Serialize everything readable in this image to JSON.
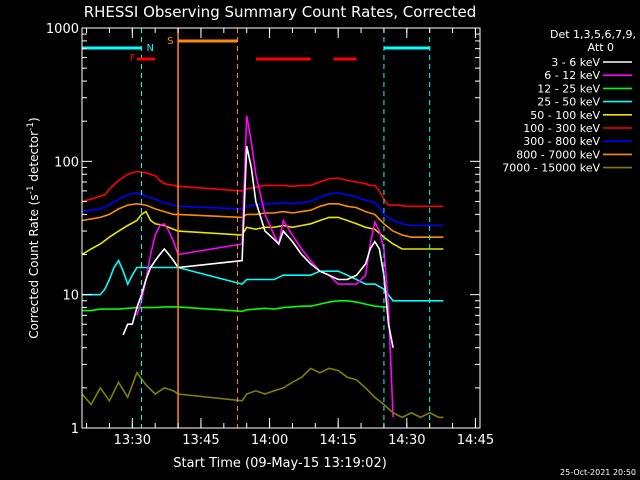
{
  "chart_data": {
    "type": "line",
    "title": "RHESSI Observing Summary Count Rates, Corrected",
    "xlabel": "Start Time (09-May-15 13:19:02)",
    "ylabel": "Corrected Count Rate (s",
    "ylabel_sup1": "-1",
    "ylabel_mid": " detector",
    "ylabel_sup2": "-1",
    "ylabel_end": ")",
    "footer_date": "25-Oct-2021 20:50",
    "yscale": "log",
    "ylim": [
      1,
      1000
    ],
    "xlim_minutes": [
      0,
      87
    ],
    "xtick_labels": [
      "13:30",
      "13:45",
      "14:00",
      "14:15",
      "14:30",
      "14:45"
    ],
    "xtick_minutes": [
      11,
      26,
      41,
      56,
      71,
      86
    ],
    "ytick_labels": [
      "1",
      "10",
      "100",
      "1000"
    ],
    "ytick_values": [
      1,
      10,
      100,
      1000
    ],
    "legend_position": "top-right",
    "legend_header": [
      "Det 1,3,5,6,7,9,",
      "Att 0"
    ],
    "legend": [
      {
        "name": "3 - 6 keV",
        "color": "#ffffff"
      },
      {
        "name": "6 - 12 keV",
        "color": "#ff00ff"
      },
      {
        "name": "12 - 25 keV",
        "color": "#00ff00"
      },
      {
        "name": "25 - 50 keV",
        "color": "#00ffff"
      },
      {
        "name": "50 - 100 keV",
        "color": "#e6e600"
      },
      {
        "name": "100 - 300 keV",
        "color": "#ff0000"
      },
      {
        "name": "300 - 800 keV",
        "color": "#0000ff"
      },
      {
        "name": "800 - 7000 keV",
        "color": "#ff8c00"
      },
      {
        "name": "7000 - 15000 keV",
        "color": "#808000"
      }
    ],
    "flags": {
      "N_label": "N",
      "F_label": "F",
      "S_label": "S",
      "night_cyan_bars": [
        [
          0,
          13
        ],
        [
          66,
          76
        ]
      ],
      "night_dashed_lines": [
        13,
        66,
        76
      ],
      "saa_orange_bar": [
        21,
        34
      ],
      "saa_solid_line": 21,
      "saa_dashed_line": 34,
      "flare_red_bars": [
        [
          12,
          16
        ],
        [
          38,
          50
        ],
        [
          55,
          60
        ]
      ]
    },
    "series": [
      {
        "name": "100 - 300 keV",
        "color": "#ff0000",
        "x": [
          0,
          2,
          4,
          5,
          6,
          8,
          10,
          12,
          14,
          16,
          17,
          18,
          20,
          21,
          35,
          36,
          38,
          40,
          42,
          44,
          46,
          48,
          50,
          52,
          54,
          56,
          58,
          60,
          62,
          63,
          64,
          65,
          66,
          67,
          69,
          71,
          73,
          75,
          77,
          79
        ],
        "y": [
          50,
          52,
          55,
          56,
          62,
          72,
          80,
          84,
          82,
          78,
          72,
          68,
          66,
          65,
          60,
          62,
          64,
          66,
          66,
          66,
          65,
          66,
          66,
          70,
          74,
          75,
          72,
          70,
          68,
          66,
          66,
          60,
          52,
          47,
          47,
          46,
          46,
          46,
          46,
          46
        ]
      },
      {
        "name": "300 - 800 keV",
        "color": "#0000ff",
        "x": [
          0,
          2,
          4,
          6,
          8,
          10,
          12,
          14,
          16,
          18,
          20,
          21,
          35,
          36,
          38,
          40,
          42,
          44,
          46,
          48,
          50,
          52,
          54,
          56,
          58,
          60,
          62,
          64,
          65,
          66,
          68,
          70,
          72,
          74,
          76,
          78,
          79
        ],
        "y": [
          42,
          43,
          44,
          47,
          52,
          56,
          58,
          55,
          52,
          49,
          47,
          46,
          44,
          46,
          47,
          48,
          48,
          49,
          48,
          49,
          50,
          54,
          57,
          58,
          56,
          54,
          51,
          49,
          45,
          40,
          36,
          34,
          33,
          33,
          33,
          33,
          33
        ]
      },
      {
        "name": "800 - 7000 keV",
        "color": "#ff8c00",
        "x": [
          0,
          2,
          4,
          6,
          8,
          10,
          12,
          14,
          16,
          18,
          20,
          21,
          35,
          36,
          38,
          40,
          42,
          44,
          46,
          48,
          50,
          52,
          54,
          56,
          58,
          60,
          62,
          64,
          66,
          68,
          70,
          72,
          74,
          76,
          78,
          79
        ],
        "y": [
          36,
          37,
          38,
          40,
          44,
          47,
          48,
          47,
          44,
          42,
          40,
          40,
          38,
          40,
          40,
          41,
          41,
          42,
          41,
          42,
          43,
          46,
          48,
          48,
          46,
          45,
          42,
          40,
          34,
          30,
          28,
          27,
          27,
          27,
          27,
          27
        ]
      },
      {
        "name": "50 - 100 keV",
        "color": "#e6e600",
        "x": [
          0,
          2,
          4,
          6,
          8,
          10,
          12,
          13,
          14,
          15,
          16,
          18,
          20,
          21,
          35,
          36,
          38,
          40,
          42,
          44,
          46,
          48,
          50,
          52,
          54,
          56,
          58,
          60,
          62,
          64,
          66,
          68,
          70,
          72,
          74,
          76,
          78,
          79
        ],
        "y": [
          20,
          22,
          24,
          27,
          30,
          33,
          36,
          40,
          42,
          36,
          34,
          33,
          31,
          30,
          28,
          32,
          31,
          32,
          32,
          33,
          32,
          33,
          34,
          36,
          38,
          38,
          36,
          34,
          32,
          31,
          27,
          24,
          22,
          22,
          22,
          22,
          22,
          22
        ]
      },
      {
        "name": "25 - 50 keV",
        "color": "#00ffff",
        "x": [
          0,
          2,
          4,
          5,
          6,
          7,
          8,
          9,
          10,
          11,
          12,
          13,
          14,
          16,
          18,
          20,
          21,
          35,
          36,
          38,
          40,
          42,
          44,
          46,
          48,
          50,
          52,
          54,
          56,
          58,
          60,
          62,
          64,
          66,
          68,
          70,
          72,
          74,
          76,
          78,
          79
        ],
        "y": [
          10,
          10,
          10,
          11,
          13,
          16,
          18,
          15,
          12,
          14,
          16,
          16,
          16,
          16,
          16,
          16,
          16,
          12,
          13,
          13,
          13,
          13,
          14,
          14,
          14,
          14,
          15,
          15,
          15,
          14,
          13,
          12,
          12,
          11,
          9,
          9,
          9,
          9,
          9,
          9,
          9
        ]
      },
      {
        "name": "12 - 25 keV",
        "color": "#00ff00",
        "x": [
          0,
          2,
          4,
          6,
          8,
          10,
          12,
          14,
          16,
          18,
          20,
          21,
          35,
          36,
          38,
          40,
          42,
          44,
          46,
          48,
          50,
          52,
          54,
          56,
          58,
          60,
          62,
          64,
          66,
          67
        ],
        "y": [
          7.6,
          7.6,
          7.8,
          7.8,
          7.8,
          7.9,
          8.0,
          8.0,
          8.0,
          8.1,
          8.1,
          8.1,
          7.5,
          7.7,
          7.8,
          7.9,
          7.8,
          8.0,
          8.1,
          8.2,
          8.2,
          8.5,
          8.8,
          9.0,
          9.0,
          8.8,
          8.5,
          8.2,
          8.1,
          8.1
        ]
      },
      {
        "name": "6 - 12 keV",
        "color": "#ff00ff",
        "x": [
          12,
          13,
          14,
          15,
          16,
          17,
          18,
          19,
          20,
          21,
          35,
          36,
          37,
          38,
          40,
          42,
          43,
          44,
          46,
          48,
          50,
          52,
          54,
          56,
          58,
          60,
          62,
          63,
          64,
          65,
          66,
          67,
          68
        ],
        "y": [
          7,
          9,
          13,
          20,
          28,
          33,
          34,
          30,
          25,
          20,
          24,
          220,
          140,
          80,
          40,
          28,
          24,
          36,
          28,
          22,
          18,
          15,
          14,
          12,
          12,
          12,
          14,
          24,
          35,
          30,
          22,
          8,
          1.2
        ]
      },
      {
        "name": "3 - 6 keV",
        "color": "#ffffff",
        "x": [
          9,
          10,
          11,
          12,
          13,
          14,
          15,
          16,
          17,
          18,
          19,
          20,
          21,
          35,
          36,
          37,
          38,
          40,
          42,
          43,
          44,
          46,
          48,
          50,
          52,
          54,
          56,
          58,
          60,
          62,
          63,
          64,
          65,
          66,
          67,
          68
        ],
        "y": [
          5,
          6,
          6,
          8,
          10,
          13,
          16,
          18,
          20,
          22,
          20,
          18,
          16,
          18,
          130,
          90,
          50,
          30,
          26,
          24,
          30,
          25,
          20,
          17,
          15,
          14,
          13,
          13,
          14,
          17,
          22,
          25,
          22,
          14,
          6,
          4
        ]
      },
      {
        "name": "7000 - 15000 keV",
        "color": "#808000",
        "x": [
          0,
          2,
          4,
          6,
          8,
          10,
          12,
          14,
          16,
          18,
          20,
          21,
          35,
          36,
          38,
          40,
          42,
          44,
          46,
          48,
          50,
          52,
          54,
          56,
          58,
          60,
          62,
          64,
          66,
          68,
          70,
          72,
          74,
          76,
          78,
          79
        ],
        "y": [
          1.8,
          1.5,
          2.0,
          1.6,
          2.2,
          1.7,
          2.6,
          2.1,
          1.8,
          2.0,
          1.9,
          1.8,
          1.6,
          1.8,
          1.9,
          1.8,
          1.9,
          2.0,
          2.2,
          2.4,
          2.8,
          2.6,
          2.8,
          2.7,
          2.4,
          2.3,
          2.0,
          1.7,
          1.5,
          1.3,
          1.2,
          1.3,
          1.2,
          1.3,
          1.2,
          1.2
        ]
      }
    ]
  }
}
